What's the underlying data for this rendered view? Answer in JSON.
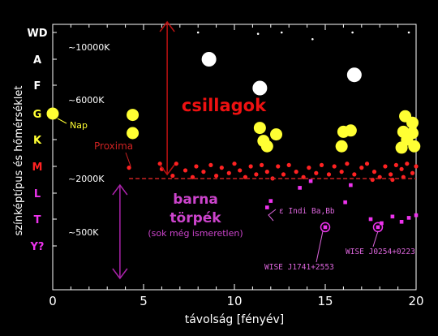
{
  "chart_data": {
    "type": "scatter",
    "title": "",
    "xlabel": "távolság [fényév]",
    "ylabel": "színképtípus és hőmérséklet",
    "xlim": [
      0,
      20
    ],
    "x_ticks": [
      0,
      5,
      10,
      15,
      20
    ],
    "spectral_classes": [
      "WD",
      "A",
      "F",
      "G",
      "K",
      "M",
      "L",
      "T",
      "Y?"
    ],
    "spectral_colors": [
      "#ffffff",
      "#ffffff",
      "#ffffff",
      "#ffff33",
      "#ffff33",
      "#ff2222",
      "#ee33ee",
      "#ee33ee",
      "#ee33ee"
    ],
    "temperature_labels": [
      {
        "text": "~10000K",
        "class": "A"
      },
      {
        "text": "~6000K",
        "class": "G"
      },
      {
        "text": "~2000K",
        "class": "L"
      },
      {
        "text": "~500K",
        "class": "T"
      }
    ],
    "region_labels": {
      "stars": "csillagok",
      "brown_dwarfs_1": "barna",
      "brown_dwarfs_2": "törpék",
      "brown_dwarfs_note": "(sok még ismeretlen)"
    },
    "annotations": {
      "sun": "Nap",
      "proxima": "Proxima",
      "indi": "ε Indi Ba,Bb",
      "wise1": "WISE J0254+0223",
      "wise2": "WISE J1741+2553"
    },
    "series": [
      {
        "name": "white",
        "color": "#ffffff",
        "points": [
          [
            8.6,
            1.0
          ],
          [
            11.4,
            2.1
          ],
          [
            16.6,
            1.6
          ]
        ],
        "size": "large"
      },
      {
        "name": "white-small",
        "color": "#ffffff",
        "points": [
          [
            8.0,
            0.0
          ],
          [
            11.3,
            0.05
          ],
          [
            12.6,
            0.0
          ],
          [
            14.3,
            0.25
          ],
          [
            16.5,
            0.0
          ],
          [
            19.6,
            0.0
          ]
        ],
        "size": "tiny"
      },
      {
        "name": "yellow",
        "color": "#ffff33",
        "points": [
          [
            0.0,
            3.0
          ],
          [
            4.4,
            3.05
          ],
          [
            4.4,
            3.75
          ],
          [
            11.4,
            3.55
          ],
          [
            11.6,
            4.05
          ],
          [
            11.8,
            4.25
          ],
          [
            12.3,
            3.8
          ],
          [
            16.0,
            3.7
          ],
          [
            16.4,
            3.65
          ],
          [
            15.9,
            4.25
          ],
          [
            19.4,
            3.1
          ],
          [
            19.8,
            3.35
          ],
          [
            19.3,
            3.7
          ],
          [
            19.8,
            3.75
          ],
          [
            19.5,
            4.0
          ],
          [
            19.9,
            4.25
          ],
          [
            19.2,
            4.3
          ]
        ],
        "size": "large"
      },
      {
        "name": "red",
        "color": "#ff2222",
        "points": [
          [
            4.2,
            5.05
          ],
          [
            5.9,
            4.9
          ],
          [
            6.0,
            5.1
          ],
          [
            6.6,
            5.35
          ],
          [
            6.8,
            4.9
          ],
          [
            7.3,
            5.15
          ],
          [
            7.7,
            5.4
          ],
          [
            7.9,
            5.0
          ],
          [
            8.3,
            5.2
          ],
          [
            8.7,
            4.95
          ],
          [
            9.0,
            5.35
          ],
          [
            9.3,
            5.05
          ],
          [
            9.7,
            5.25
          ],
          [
            10.0,
            4.9
          ],
          [
            10.3,
            5.15
          ],
          [
            10.6,
            5.4
          ],
          [
            10.9,
            5.0
          ],
          [
            11.2,
            5.3
          ],
          [
            11.5,
            4.95
          ],
          [
            11.8,
            5.2
          ],
          [
            12.1,
            5.45
          ],
          [
            12.4,
            5.0
          ],
          [
            12.7,
            5.3
          ],
          [
            13.0,
            4.95
          ],
          [
            13.4,
            5.2
          ],
          [
            13.8,
            5.4
          ],
          [
            14.1,
            5.05
          ],
          [
            14.5,
            5.25
          ],
          [
            14.8,
            4.95
          ],
          [
            15.2,
            5.3
          ],
          [
            15.5,
            5.0
          ],
          [
            15.9,
            5.2
          ],
          [
            16.2,
            4.9
          ],
          [
            16.6,
            5.3
          ],
          [
            17.0,
            5.05
          ],
          [
            17.3,
            4.9
          ],
          [
            17.7,
            5.2
          ],
          [
            18.0,
            5.4
          ],
          [
            18.3,
            5.0
          ],
          [
            18.6,
            5.3
          ],
          [
            18.9,
            4.95
          ],
          [
            19.2,
            5.1
          ],
          [
            19.5,
            4.9
          ],
          [
            19.8,
            5.25
          ],
          [
            20.0,
            5.0
          ],
          [
            19.3,
            5.4
          ],
          [
            18.7,
            5.5
          ],
          [
            17.6,
            5.5
          ]
        ],
        "size": "small"
      },
      {
        "name": "magenta",
        "color": "#ee33ee",
        "points": [
          [
            12.0,
            6.3
          ],
          [
            13.6,
            5.8
          ],
          [
            14.2,
            5.55
          ],
          [
            16.1,
            6.35
          ],
          [
            16.4,
            5.7
          ],
          [
            11.8,
            6.55
          ],
          [
            17.5,
            7.0
          ],
          [
            18.1,
            7.15
          ],
          [
            18.7,
            6.9
          ],
          [
            19.2,
            7.1
          ],
          [
            19.6,
            6.95
          ],
          [
            20.0,
            6.85
          ],
          [
            15.0,
            7.3
          ],
          [
            17.9,
            7.3
          ]
        ],
        "size": "small"
      }
    ],
    "ringed_points": [
      [
        15.0,
        7.3
      ],
      [
        17.9,
        7.3
      ]
    ]
  }
}
